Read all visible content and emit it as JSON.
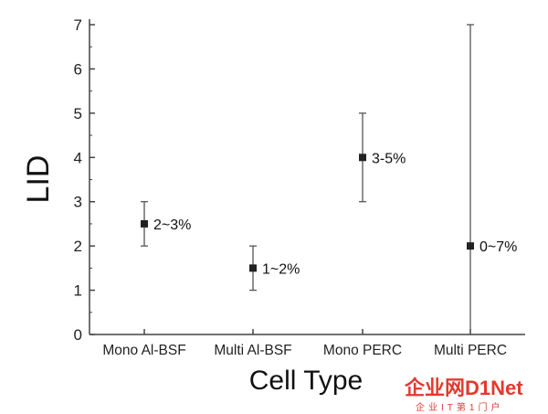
{
  "chart_data": {
    "type": "scatter",
    "xlabel": "Cell Type",
    "ylabel": "LID",
    "ylim": [
      0,
      7
    ],
    "yticks": [
      "0",
      "1",
      "2",
      "3",
      "4",
      "5",
      "6",
      "7"
    ],
    "categories": [
      "Mono Al-BSF",
      "Multi Al-BSF",
      "Mono PERC",
      "Multi PERC"
    ],
    "points": [
      {
        "category": "Mono Al-BSF",
        "value": 2.5,
        "low": 2,
        "high": 3,
        "label": "2~3%"
      },
      {
        "category": "Multi Al-BSF",
        "value": 1.5,
        "low": 1,
        "high": 2,
        "label": "1~2%"
      },
      {
        "category": "Mono PERC",
        "value": 4,
        "low": 3,
        "high": 5,
        "label": "3-5%"
      },
      {
        "category": "Multi PERC",
        "value": 2,
        "low": 0,
        "high": 7,
        "label": "0~7%"
      }
    ],
    "grid": false,
    "color": "#222222"
  },
  "watermark": {
    "text": "企业网D1Net",
    "subtext": "企业IT第1门户"
  }
}
